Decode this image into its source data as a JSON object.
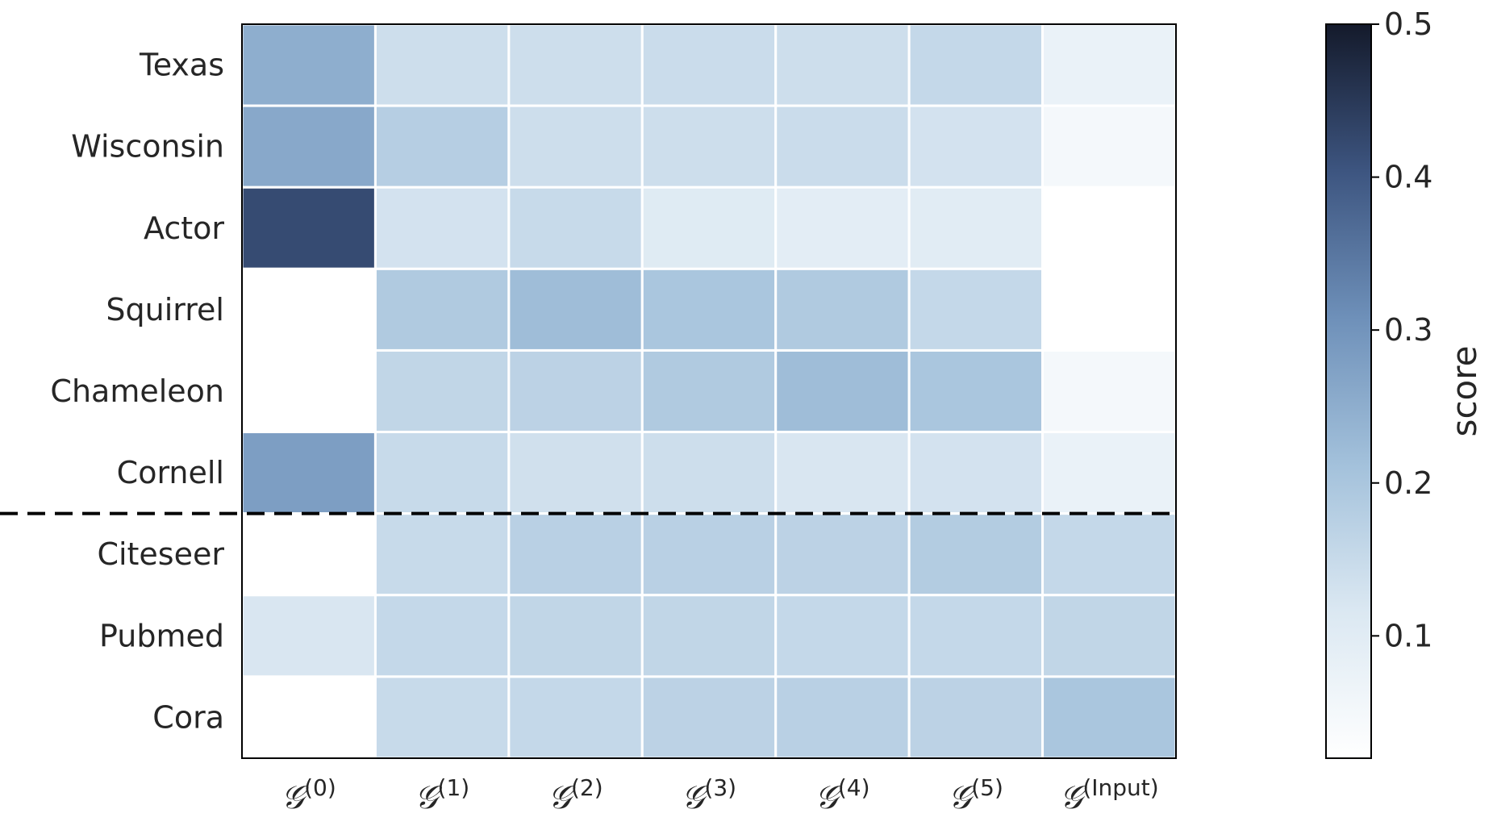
{
  "chart_data": {
    "type": "heatmap",
    "title": "",
    "xlabel": "",
    "ylabel": "",
    "rows": [
      "Texas",
      "Wisconsin",
      "Actor",
      "Squirrel",
      "Chameleon",
      "Cornell",
      "Citeseer",
      "Pubmed",
      "Cora"
    ],
    "columns": [
      {
        "base": "𝒢",
        "sup": "(0)"
      },
      {
        "base": "𝒢",
        "sup": "(1)"
      },
      {
        "base": "𝒢",
        "sup": "(2)"
      },
      {
        "base": "𝒢",
        "sup": "(3)"
      },
      {
        "base": "𝒢",
        "sup": "(4)"
      },
      {
        "base": "𝒢",
        "sup": "(5)"
      },
      {
        "base": "𝒢",
        "sup": "(Input)"
      }
    ],
    "values": [
      [
        0.25,
        0.14,
        0.14,
        0.145,
        0.14,
        0.155,
        0.075
      ],
      [
        0.26,
        0.18,
        0.14,
        0.14,
        0.145,
        0.13,
        0.05
      ],
      [
        0.42,
        0.13,
        0.15,
        0.105,
        0.095,
        0.1,
        0.0
      ],
      [
        0.0,
        0.19,
        0.22,
        0.2,
        0.19,
        0.155,
        0.0
      ],
      [
        0.0,
        0.16,
        0.17,
        0.19,
        0.22,
        0.2,
        0.05
      ],
      [
        0.28,
        0.15,
        0.135,
        0.14,
        0.12,
        0.13,
        0.075
      ],
      [
        0.0,
        0.15,
        0.175,
        0.175,
        0.17,
        0.185,
        0.155
      ],
      [
        0.12,
        0.155,
        0.16,
        0.16,
        0.155,
        0.155,
        0.16
      ],
      [
        0.0,
        0.15,
        0.155,
        0.17,
        0.175,
        0.17,
        0.2
      ]
    ],
    "separator_after_row": 5,
    "colorbar": {
      "label": "score",
      "min": 0.02,
      "max": 0.5,
      "ticks": [
        0.1,
        0.2,
        0.3,
        0.4,
        0.5
      ],
      "tick_labels": [
        "0.1",
        "0.2",
        "0.3",
        "0.4",
        "0.5"
      ],
      "colormap": [
        "#ffffff",
        "#dbe8f2",
        "#a3c1db",
        "#6e90b9",
        "#3d5580",
        "#141a2b"
      ]
    }
  }
}
